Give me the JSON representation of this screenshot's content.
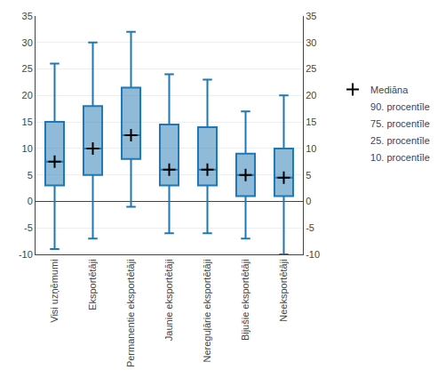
{
  "chart_data": {
    "type": "box",
    "categories": [
      "Visi uzņēmumi",
      "Eksportētāji",
      "Permanentie eksportētāji",
      "Jaunie eksportētāji",
      "Nereguļārie eksportētāji",
      "Bijušie eksportētāji",
      "Neeksportētāji"
    ],
    "series": [
      {
        "name": "Mediāna",
        "values": [
          7.5,
          10,
          12.5,
          6,
          6,
          5,
          4.5
        ],
        "marker": "+",
        "color": "#000000"
      },
      {
        "name": "90. procentīle",
        "values": [
          26,
          30,
          32,
          24,
          23,
          17,
          20
        ]
      },
      {
        "name": "75. procentīle",
        "values": [
          15,
          18,
          21.5,
          14.5,
          14,
          9,
          10
        ]
      },
      {
        "name": "25. procentīle",
        "values": [
          3,
          5,
          8,
          3,
          3,
          1,
          1
        ]
      },
      {
        "name": "10. procentīle",
        "values": [
          -9,
          -7,
          -1,
          -6,
          -6,
          -7,
          -10
        ]
      }
    ],
    "ylim": [
      -10,
      35
    ],
    "yticks": [
      -10,
      -5,
      0,
      5,
      10,
      15,
      20,
      25,
      30,
      35
    ],
    "y2lim": [
      -10,
      35
    ],
    "y2ticks": [
      -10,
      -5,
      0,
      5,
      10,
      15,
      20,
      25,
      30,
      35
    ],
    "legend": "right"
  }
}
